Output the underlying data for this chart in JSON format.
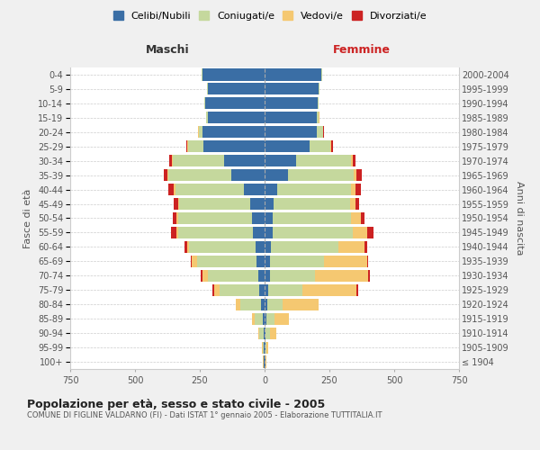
{
  "age_groups": [
    "100+",
    "95-99",
    "90-94",
    "85-89",
    "80-84",
    "75-79",
    "70-74",
    "65-69",
    "60-64",
    "55-59",
    "50-54",
    "45-49",
    "40-44",
    "35-39",
    "30-34",
    "25-29",
    "20-24",
    "15-19",
    "10-14",
    "5-9",
    "0-4"
  ],
  "birth_years": [
    "≤ 1904",
    "1905-1909",
    "1910-1914",
    "1915-1919",
    "1920-1924",
    "1925-1929",
    "1930-1934",
    "1935-1939",
    "1940-1944",
    "1945-1949",
    "1950-1954",
    "1955-1959",
    "1960-1964",
    "1965-1969",
    "1970-1974",
    "1975-1979",
    "1980-1984",
    "1985-1989",
    "1990-1994",
    "1995-1999",
    "2000-2004"
  ],
  "male": {
    "celibi": [
      2,
      3,
      5,
      8,
      15,
      20,
      25,
      30,
      35,
      45,
      50,
      55,
      80,
      130,
      155,
      235,
      240,
      220,
      230,
      220,
      240
    ],
    "coniugati": [
      3,
      5,
      15,
      30,
      80,
      155,
      195,
      230,
      255,
      290,
      285,
      275,
      265,
      240,
      200,
      60,
      15,
      5,
      2,
      2,
      2
    ],
    "vedovi": [
      1,
      2,
      5,
      10,
      15,
      20,
      20,
      20,
      10,
      5,
      5,
      5,
      5,
      5,
      3,
      2,
      1,
      1,
      0,
      0,
      0
    ],
    "divorziati": [
      0,
      0,
      0,
      0,
      0,
      5,
      5,
      5,
      10,
      20,
      15,
      15,
      20,
      15,
      10,
      5,
      2,
      1,
      0,
      0,
      0
    ]
  },
  "female": {
    "nubili": [
      2,
      3,
      5,
      8,
      10,
      15,
      20,
      20,
      25,
      30,
      30,
      35,
      50,
      90,
      120,
      175,
      200,
      200,
      205,
      210,
      220
    ],
    "coniugate": [
      2,
      5,
      15,
      30,
      60,
      130,
      175,
      210,
      260,
      310,
      305,
      295,
      285,
      255,
      215,
      80,
      25,
      10,
      5,
      2,
      2
    ],
    "vedove": [
      2,
      5,
      25,
      55,
      140,
      210,
      205,
      165,
      100,
      55,
      35,
      20,
      15,
      10,
      5,
      3,
      2,
      1,
      0,
      0,
      0
    ],
    "divorziate": [
      0,
      0,
      0,
      0,
      0,
      5,
      5,
      5,
      10,
      25,
      15,
      15,
      20,
      20,
      10,
      5,
      2,
      1,
      0,
      0,
      0
    ]
  },
  "colors": {
    "celibi": "#3a6ea5",
    "coniugati": "#c5d89d",
    "vedovi": "#f5c871",
    "divorziati": "#cc2222"
  },
  "title": "Popolazione per età, sesso e stato civile - 2005",
  "subtitle": "COMUNE DI FIGLINE VALDARNO (FI) - Dati ISTAT 1° gennaio 2005 - Elaborazione TUTTITALIA.IT",
  "ylabel_left": "Fasce di età",
  "ylabel_right": "Anni di nascita",
  "xlabel_left": "Maschi",
  "xlabel_right": "Femmine",
  "xlim": 750,
  "bg_color": "#f0f0f0",
  "plot_bg": "#ffffff",
  "legend_labels": [
    "Celibi/Nubili",
    "Coniugati/e",
    "Vedovi/e",
    "Divorziati/e"
  ]
}
